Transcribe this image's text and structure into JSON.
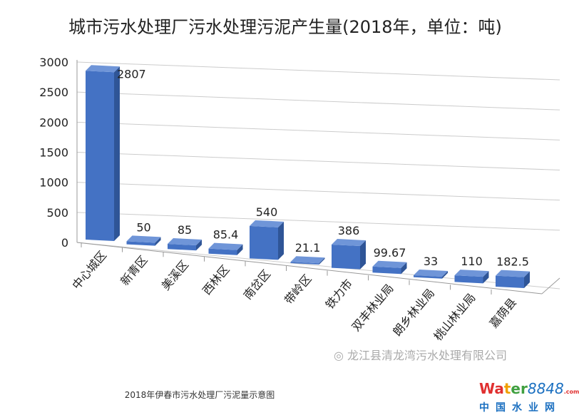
{
  "chart_data": {
    "type": "bar",
    "title": "城市污水处理厂污水处理污泥产生量(2018年，单位：吨)",
    "categories": [
      "中心城区",
      "新青区",
      "美溪区",
      "西林区",
      "南岔区",
      "带岭区",
      "铁力市",
      "双丰林业局",
      "朗乡林业局",
      "桃山林业局",
      "嘉荫县"
    ],
    "values": [
      2807,
      50,
      85,
      85.4,
      540,
      21.1,
      386,
      99.67,
      33,
      110,
      182.5
    ],
    "value_labels": [
      "2807",
      "50",
      "85",
      "85.4",
      "540",
      "21.1",
      "386",
      "99.67",
      "33",
      "110",
      "182.5"
    ],
    "yticks": [
      "0",
      "500",
      "1000",
      "1500",
      "2000",
      "2500",
      "3000"
    ],
    "ylim": [
      0,
      3000
    ],
    "xlabel": "",
    "ylabel": "",
    "grid": true,
    "bar_color": "#4472c4"
  },
  "watermark": "龙江县清龙湾污水处理有限公司",
  "caption": "2018年伊春市污水处理厂污泥量示意图",
  "logo": {
    "text": "Water8848.com",
    "cn": "中国水业网"
  }
}
